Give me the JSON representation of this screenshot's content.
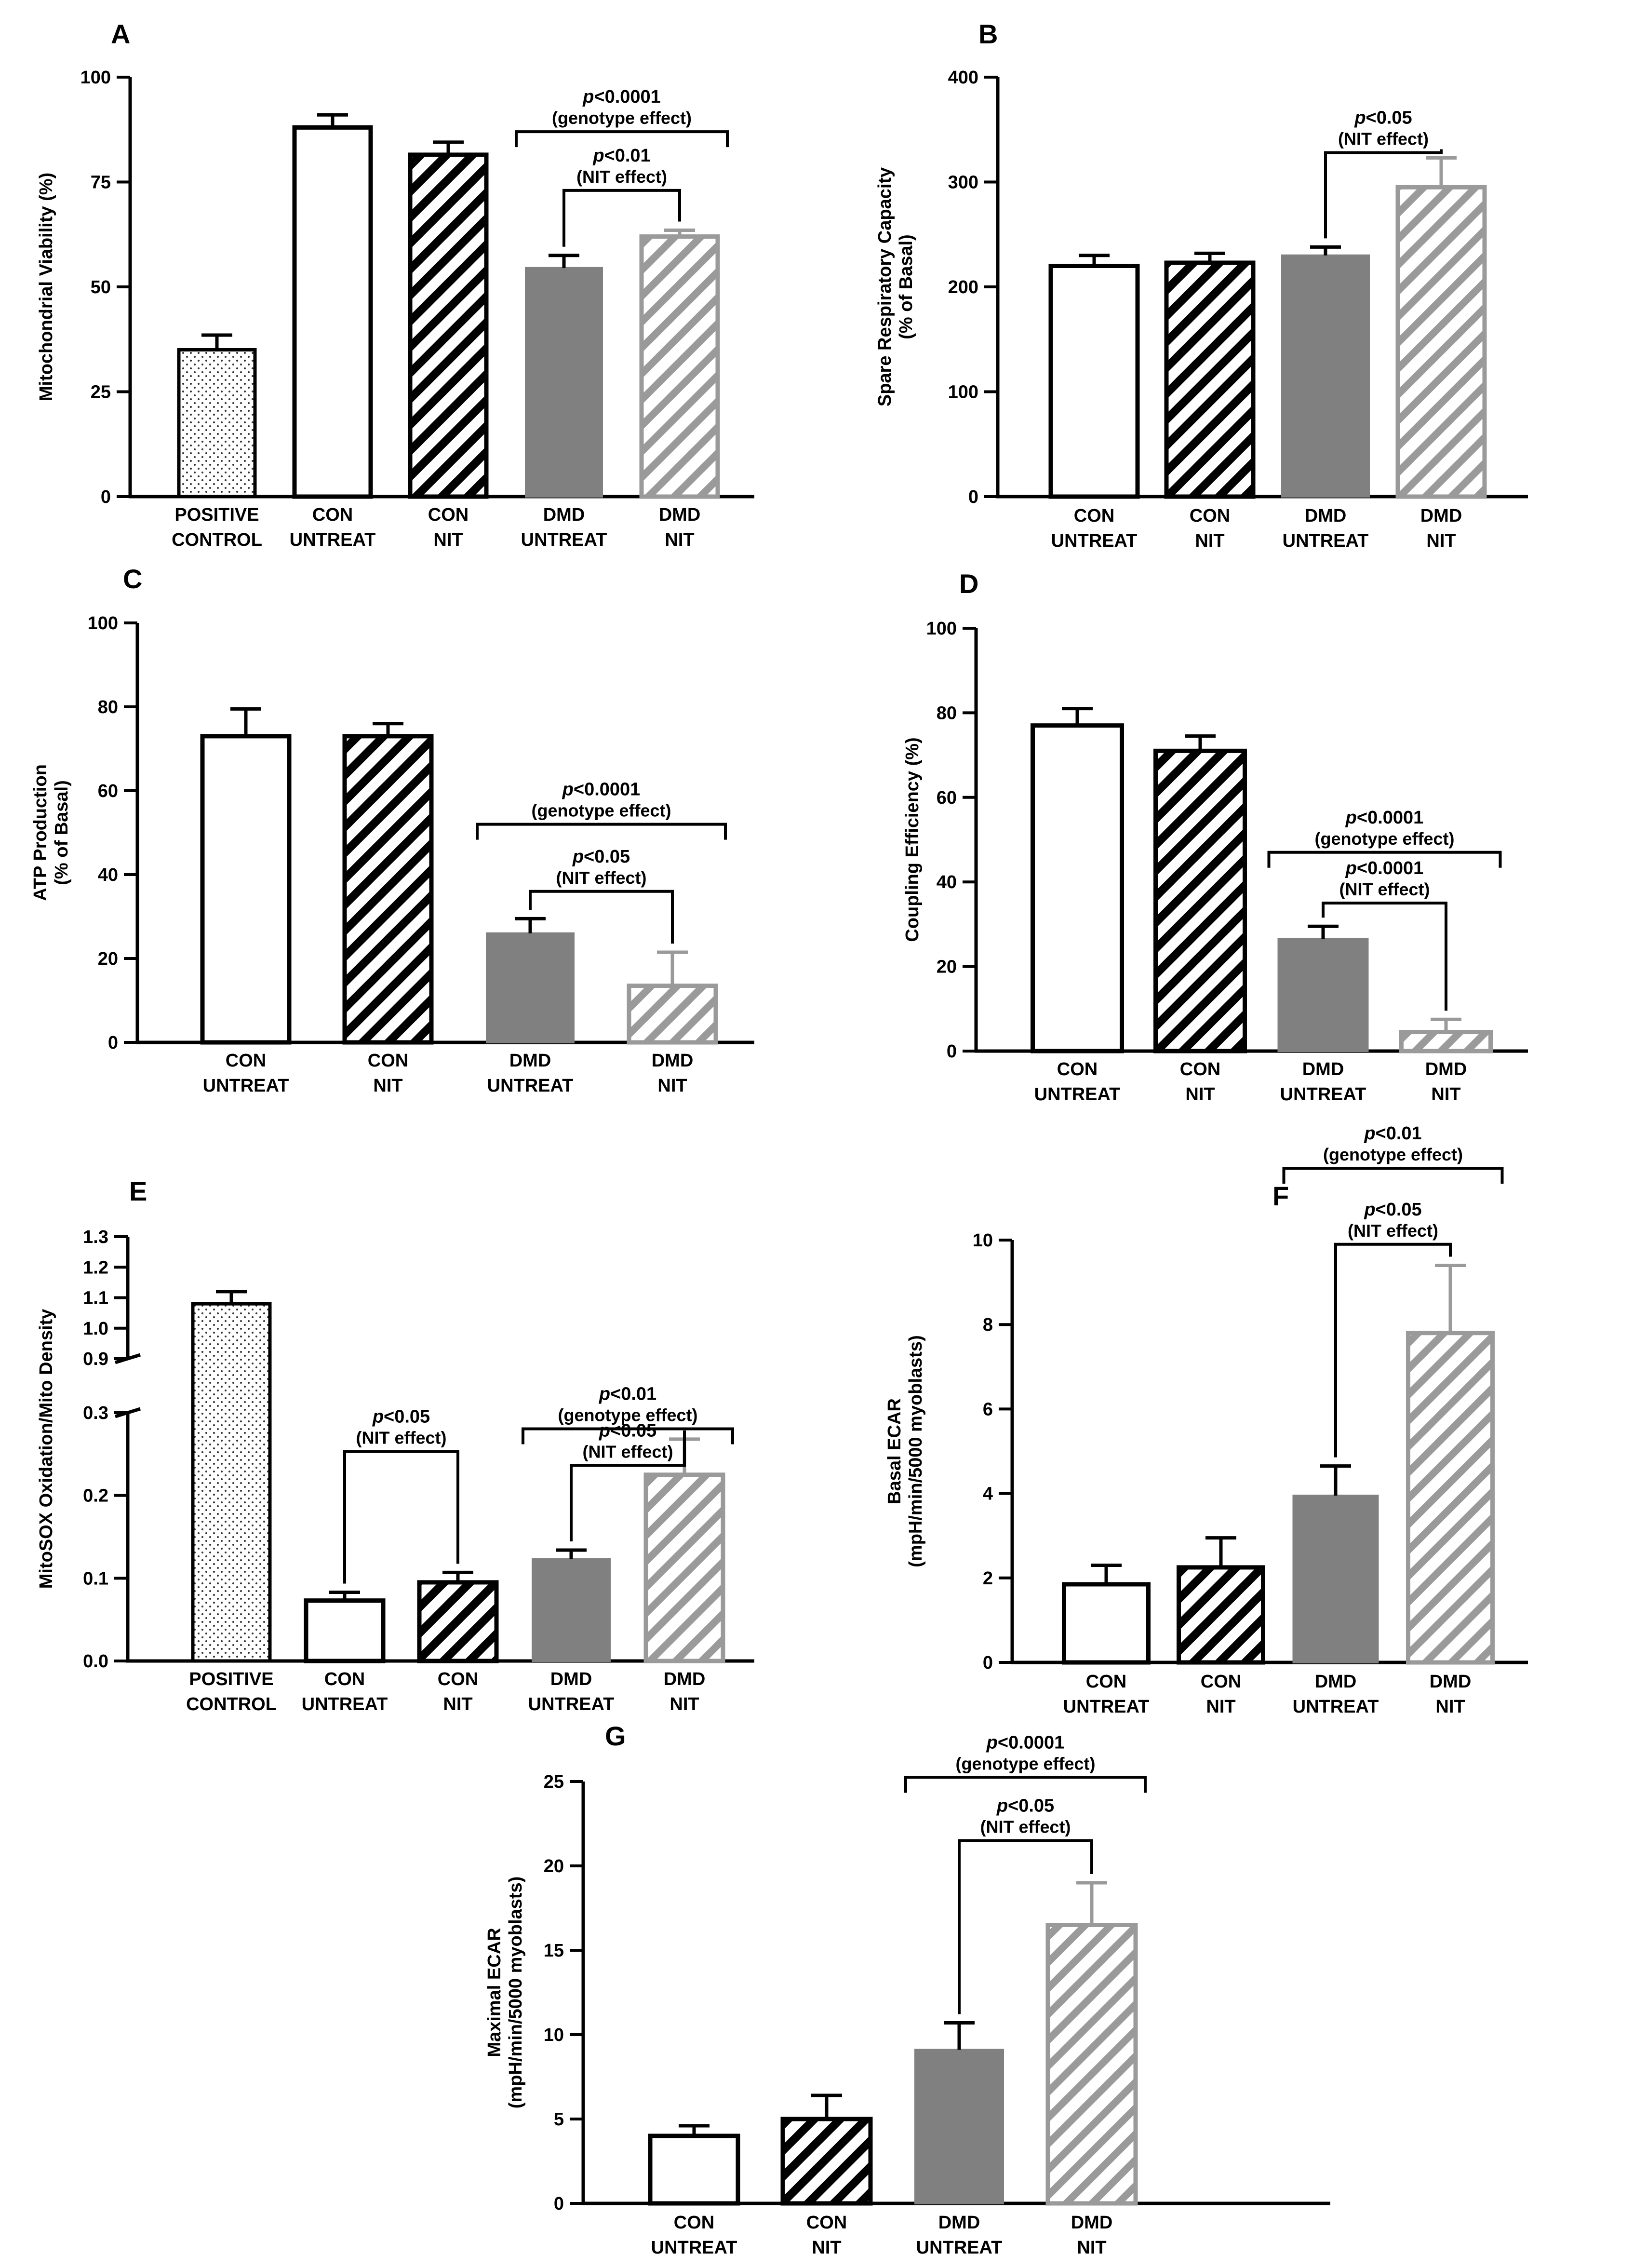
{
  "colors": {
    "axis": "#000000",
    "dmd_untreat_fill": "#808080",
    "dmd_nit_stripe": "#9a9a9a",
    "con_nit_stripe": "#000000",
    "background": "#ffffff"
  },
  "group_styles": {
    "POSITIVE CONTROL": "dots",
    "CON UNTREAT": "open",
    "CON NIT": "hatch-black",
    "DMD UNTREAT": "solid-gray",
    "DMD NIT": "hatch-gray"
  },
  "chart_data": [
    {
      "id": "A",
      "type": "bar",
      "panel_label": "A",
      "ylabel": "Mitochondrial Viability (%)",
      "ylim": [
        0,
        100
      ],
      "yticks": [
        0,
        25,
        50,
        75,
        100
      ],
      "categories": [
        [
          "POSITIVE",
          "CONTROL"
        ],
        [
          "CON",
          "UNTREAT"
        ],
        [
          "CON",
          "NIT"
        ],
        [
          "DMD",
          "UNTREAT"
        ],
        [
          "DMD",
          "NIT"
        ]
      ],
      "groups": [
        "POSITIVE CONTROL",
        "CON UNTREAT",
        "CON NIT",
        "DMD UNTREAT",
        "DMD NIT"
      ],
      "values": [
        35,
        88,
        81.5,
        54.5,
        62
      ],
      "errors": [
        3.5,
        3,
        3,
        3,
        1.5
      ],
      "annotations": [
        {
          "p": "p<0.0001",
          "effect": "(genotype effect)",
          "from": 3,
          "to": 4,
          "style": "span",
          "level": 0.87
        },
        {
          "p": "p<0.01",
          "effect": "(NIT effect)",
          "from": 3,
          "to": 4,
          "style": "pair",
          "level": 0.73
        }
      ]
    },
    {
      "id": "B",
      "type": "bar",
      "panel_label": "B",
      "ylabel": [
        "Spare Respiratory Capacity",
        "(% of Basal)"
      ],
      "ylim": [
        0,
        400
      ],
      "yticks": [
        0,
        100,
        200,
        300,
        400
      ],
      "categories": [
        [
          "CON",
          "UNTREAT"
        ],
        [
          "CON",
          "NIT"
        ],
        [
          "DMD",
          "UNTREAT"
        ],
        [
          "DMD",
          "NIT"
        ]
      ],
      "groups": [
        "CON UNTREAT",
        "CON NIT",
        "DMD UNTREAT",
        "DMD NIT"
      ],
      "values": [
        220,
        223,
        230,
        295
      ],
      "errors": [
        10,
        9,
        8,
        28
      ],
      "annotations": [
        {
          "p": "p<0.05",
          "effect": "(NIT effect)",
          "from": 2,
          "to": 3,
          "style": "pair",
          "level": 0.82
        }
      ]
    },
    {
      "id": "C",
      "type": "bar",
      "panel_label": "C",
      "ylabel": [
        "ATP Production",
        "(% of Basal)"
      ],
      "ylim": [
        0,
        100
      ],
      "yticks": [
        0,
        20,
        40,
        60,
        80,
        100
      ],
      "categories": [
        [
          "CON",
          "UNTREAT"
        ],
        [
          "CON",
          "NIT"
        ],
        [
          "DMD",
          "UNTREAT"
        ],
        [
          "DMD",
          "NIT"
        ]
      ],
      "groups": [
        "CON UNTREAT",
        "CON NIT",
        "DMD UNTREAT",
        "DMD NIT"
      ],
      "values": [
        73,
        73,
        26,
        13.5
      ],
      "errors": [
        6.5,
        3,
        3.5,
        8
      ],
      "annotations": [
        {
          "p": "p<0.0001",
          "effect": "(genotype effect)",
          "from": 2,
          "to": 3,
          "style": "span",
          "level": 0.52
        },
        {
          "p": "p<0.05",
          "effect": "(NIT effect)",
          "from": 2,
          "to": 3,
          "style": "pair",
          "level": 0.36
        }
      ]
    },
    {
      "id": "D",
      "type": "bar",
      "panel_label": "D",
      "ylabel": "Coupling Efficiency (%)",
      "ylim": [
        0,
        100
      ],
      "yticks": [
        0,
        20,
        40,
        60,
        80,
        100
      ],
      "categories": [
        [
          "CON",
          "UNTREAT"
        ],
        [
          "CON",
          "NIT"
        ],
        [
          "DMD",
          "UNTREAT"
        ],
        [
          "DMD",
          "NIT"
        ]
      ],
      "groups": [
        "CON UNTREAT",
        "CON NIT",
        "DMD UNTREAT",
        "DMD NIT"
      ],
      "values": [
        77,
        71,
        26.5,
        4.5
      ],
      "errors": [
        4,
        3.5,
        3,
        3
      ],
      "annotations": [
        {
          "p": "p<0.0001",
          "effect": "(genotype effect)",
          "from": 2,
          "to": 3,
          "style": "span",
          "level": 0.47
        },
        {
          "p": "p<0.0001",
          "effect": "(NIT effect)",
          "from": 2,
          "to": 3,
          "style": "pair",
          "level": 0.35
        }
      ]
    },
    {
      "id": "E",
      "type": "bar",
      "panel_label": "E",
      "ylabel": "MitoSOX Oxidation/Mito Density",
      "broken_axis": {
        "lower": [
          0,
          0.3
        ],
        "upper": [
          0.9,
          1.3
        ]
      },
      "yticks_lower": [
        "0.0",
        "0.1",
        "0.2",
        "0.3"
      ],
      "yticks_upper": [
        "0.9",
        "1.0",
        "1.1",
        "1.2",
        "1.3"
      ],
      "categories": [
        [
          "POSITIVE",
          "CONTROL"
        ],
        [
          "CON",
          "UNTREAT"
        ],
        [
          "CON",
          "NIT"
        ],
        [
          "DMD",
          "UNTREAT"
        ],
        [
          "DMD",
          "NIT"
        ]
      ],
      "groups": [
        "POSITIVE CONTROL",
        "CON UNTREAT",
        "CON NIT",
        "DMD UNTREAT",
        "DMD NIT"
      ],
      "values": [
        1.08,
        0.073,
        0.095,
        0.123,
        0.225
      ],
      "errors": [
        0.04,
        0.01,
        0.012,
        0.011,
        0.043
      ],
      "annotations": [
        {
          "p": "p<0.05",
          "effect": "(NIT effect)",
          "from": 1,
          "to": 2,
          "style": "pair",
          "level": 0.253
        },
        {
          "p": "p<0.01",
          "effect": "(genotype effect)",
          "from": 3,
          "to": 4,
          "style": "span",
          "level": 0.67
        },
        {
          "p": "p<0.05",
          "effect": "(NIT effect)",
          "from": 3,
          "to": 4,
          "style": "pair",
          "level": 0.55
        }
      ]
    },
    {
      "id": "F",
      "type": "bar",
      "panel_label": "F",
      "ylabel": [
        "Basal ECAR",
        "(mpH/min/5000 myoblasts)"
      ],
      "ylim": [
        0,
        10
      ],
      "yticks": [
        0,
        2,
        4,
        6,
        8,
        10
      ],
      "categories": [
        [
          "CON",
          "UNTREAT"
        ],
        [
          "CON",
          "NIT"
        ],
        [
          "DMD",
          "UNTREAT"
        ],
        [
          "DMD",
          "NIT"
        ]
      ],
      "groups": [
        "CON UNTREAT",
        "CON NIT",
        "DMD UNTREAT",
        "DMD NIT"
      ],
      "values": [
        1.85,
        2.25,
        3.95,
        7.8
      ],
      "errors": [
        0.45,
        0.7,
        0.7,
        1.6
      ],
      "annotations": [
        {
          "p": "p<0.01",
          "effect": "(genotype effect)",
          "from": 2,
          "to": 3,
          "style": "span",
          "level": 1.17
        },
        {
          "p": "p<0.05",
          "effect": "(NIT effect)",
          "from": 2,
          "to": 3,
          "style": "pair",
          "level": 0.99
        }
      ]
    },
    {
      "id": "G",
      "type": "bar",
      "panel_label": "G",
      "ylabel": [
        "Maximal ECAR",
        "(mpH/min/5000 myoblasts)"
      ],
      "ylim": [
        0,
        25
      ],
      "yticks": [
        0,
        5,
        10,
        15,
        20,
        25
      ],
      "categories": [
        [
          "CON",
          "UNTREAT"
        ],
        [
          "CON",
          "NIT"
        ],
        [
          "DMD",
          "UNTREAT"
        ],
        [
          "DMD",
          "NIT"
        ]
      ],
      "groups": [
        "CON UNTREAT",
        "CON NIT",
        "DMD UNTREAT",
        "DMD NIT"
      ],
      "values": [
        4,
        5,
        9.1,
        16.5
      ],
      "errors": [
        0.6,
        1.4,
        1.6,
        2.5
      ],
      "annotations": [
        {
          "p": "p<0.0001",
          "effect": "(genotype effect)",
          "from": 2,
          "to": 3,
          "style": "span",
          "level": 1.01
        },
        {
          "p": "p<0.05",
          "effect": "(NIT effect)",
          "from": 2,
          "to": 3,
          "style": "pair",
          "level": 0.86
        }
      ]
    }
  ]
}
